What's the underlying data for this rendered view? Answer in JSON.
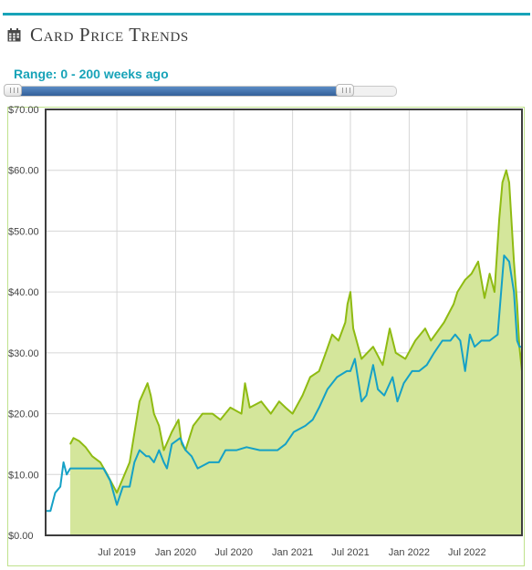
{
  "header": {
    "title": "Card Price Trends",
    "icon": "calendar-icon"
  },
  "range": {
    "label": "Range: 0 - 200 weeks ago",
    "min_weeks": 0,
    "max_weeks": 200,
    "fill_fraction": 0.87
  },
  "colors": {
    "accent": "#17a3b8",
    "area_fill": "#d4e69b",
    "green_line": "#8fbb12",
    "blue_line": "#15a1c6"
  },
  "chart_data": {
    "type": "line",
    "title": "",
    "xlabel": "",
    "ylabel": "",
    "ylim": [
      0,
      70
    ],
    "xlim": [
      "2018-11-20",
      "2022-12-20"
    ],
    "grid": true,
    "y_ticks": [
      "$0.00",
      "$10.00",
      "$20.00",
      "$30.00",
      "$40.00",
      "$50.00",
      "$60.00",
      "$70.00"
    ],
    "y_tick_values": [
      0,
      10,
      20,
      30,
      40,
      50,
      60,
      70
    ],
    "x_ticks": [
      "Jul 2019",
      "Jan 2020",
      "Jul 2020",
      "Jan 2021",
      "Jul 2021",
      "Jan 2022",
      "Jul 2022"
    ],
    "x_tick_dates": [
      "2019-07-01",
      "2020-01-01",
      "2020-07-01",
      "2021-01-01",
      "2021-07-01",
      "2022-01-01",
      "2022-07-01"
    ],
    "series": [
      {
        "style": "area",
        "x": [
          "2019-02-05",
          "2019-02-15",
          "2019-03-05",
          "2019-03-25",
          "2019-04-15",
          "2019-05-10",
          "2019-06-01",
          "2019-07-01",
          "2019-08-10",
          "2019-09-10",
          "2019-10-05",
          "2019-10-15",
          "2019-10-25",
          "2019-11-10",
          "2019-11-25",
          "2019-12-20",
          "2020-01-10",
          "2020-01-20",
          "2020-02-01",
          "2020-02-25",
          "2020-03-25",
          "2020-04-25",
          "2020-05-20",
          "2020-06-20",
          "2020-07-25",
          "2020-08-05",
          "2020-08-20",
          "2020-09-25",
          "2020-10-25",
          "2020-11-20",
          "2020-12-10",
          "2021-01-01",
          "2021-02-01",
          "2021-02-25",
          "2021-03-25",
          "2021-04-15",
          "2021-05-05",
          "2021-05-25",
          "2021-06-15",
          "2021-06-22",
          "2021-07-01",
          "2021-07-10",
          "2021-08-05",
          "2021-09-10",
          "2021-10-10",
          "2021-11-01",
          "2021-11-20",
          "2021-12-20",
          "2022-01-20",
          "2022-02-20",
          "2022-03-10",
          "2022-04-20",
          "2022-05-20",
          "2022-06-01",
          "2022-06-25",
          "2022-07-15",
          "2022-08-05",
          "2022-08-25",
          "2022-09-10",
          "2022-09-25",
          "2022-10-10",
          "2022-10-20",
          "2022-11-01",
          "2022-11-10",
          "2022-11-25",
          "2022-12-05",
          "2022-12-12",
          "2022-12-20"
        ],
        "values": [
          15,
          16,
          15.5,
          14.5,
          13,
          12,
          10,
          7,
          12,
          22,
          25,
          23,
          20,
          18,
          14,
          17,
          19,
          15,
          14,
          18,
          20,
          20,
          19,
          21,
          20,
          25,
          21,
          22,
          20,
          22,
          21,
          20,
          23,
          26,
          27,
          30,
          33,
          32,
          35,
          38,
          40,
          34,
          29,
          31,
          28,
          34,
          30,
          29,
          32,
          34,
          32,
          35,
          38,
          40,
          42,
          43,
          45,
          39,
          43,
          40,
          52,
          58,
          60,
          58,
          45,
          38,
          31,
          27
        ]
      },
      {
        "style": "line",
        "x": [
          "2018-11-20",
          "2018-12-05",
          "2018-12-20",
          "2019-01-05",
          "2019-01-15",
          "2019-01-25",
          "2019-02-05",
          "2019-03-10",
          "2019-04-20",
          "2019-05-20",
          "2019-06-10",
          "2019-07-01",
          "2019-07-20",
          "2019-08-10",
          "2019-08-25",
          "2019-09-10",
          "2019-10-01",
          "2019-10-10",
          "2019-10-25",
          "2019-11-10",
          "2019-11-25",
          "2019-12-05",
          "2019-12-20",
          "2020-01-15",
          "2020-02-01",
          "2020-02-20",
          "2020-03-10",
          "2020-04-15",
          "2020-05-15",
          "2020-06-05",
          "2020-07-10",
          "2020-08-10",
          "2020-09-20",
          "2020-10-25",
          "2020-11-15",
          "2020-12-10",
          "2021-01-05",
          "2021-02-10",
          "2021-03-05",
          "2021-03-25",
          "2021-04-20",
          "2021-05-20",
          "2021-06-20",
          "2021-07-01",
          "2021-07-15",
          "2021-08-05",
          "2021-08-20",
          "2021-09-10",
          "2021-09-25",
          "2021-10-15",
          "2021-11-10",
          "2021-11-25",
          "2021-12-15",
          "2022-01-10",
          "2022-02-01",
          "2022-02-25",
          "2022-03-20",
          "2022-04-15",
          "2022-05-10",
          "2022-05-25",
          "2022-06-10",
          "2022-06-25",
          "2022-07-10",
          "2022-07-25",
          "2022-08-15",
          "2022-09-10",
          "2022-10-05",
          "2022-10-25",
          "2022-11-10",
          "2022-11-25",
          "2022-12-05",
          "2022-12-12",
          "2022-12-20"
        ],
        "values": [
          4,
          4,
          7,
          8,
          12,
          10,
          11,
          11,
          11,
          11,
          9,
          5,
          8,
          8,
          12,
          14,
          13,
          13,
          12,
          14,
          12,
          11,
          15,
          16,
          14,
          13,
          11,
          12,
          12,
          14,
          14,
          14.5,
          14,
          14,
          14,
          15,
          17,
          18,
          19,
          21,
          24,
          26,
          27,
          27,
          29,
          22,
          23,
          28,
          24,
          23,
          26,
          22,
          25,
          27,
          27,
          28,
          30,
          32,
          32,
          33,
          32,
          27,
          33,
          31,
          32,
          32,
          33,
          46,
          45,
          40,
          32,
          31,
          31
        ]
      }
    ]
  }
}
